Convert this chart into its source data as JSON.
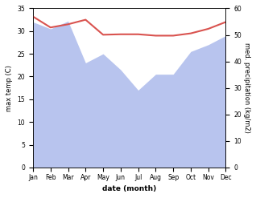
{
  "months": [
    "Jan",
    "Feb",
    "Mar",
    "Apr",
    "May",
    "Jun",
    "Jul",
    "Aug",
    "Sep",
    "Oct",
    "Nov",
    "Dec"
  ],
  "x": [
    0,
    1,
    2,
    3,
    4,
    5,
    6,
    7,
    8,
    9,
    10,
    11
  ],
  "temperature": [
    33.2,
    30.8,
    31.5,
    32.5,
    29.2,
    29.3,
    29.3,
    29.0,
    29.0,
    29.5,
    30.5,
    32.0
  ],
  "precipitation_temp_scale": [
    32.0,
    30.5,
    32.2,
    23.0,
    25.0,
    21.5,
    17.0,
    20.5,
    20.5,
    25.5,
    27.0,
    29.0
  ],
  "temp_color": "#d9534f",
  "precip_fill_color": "#b8c4ee",
  "temp_ylim": [
    0,
    35
  ],
  "precip_ylim": [
    0,
    60
  ],
  "temp_ylabel": "max temp (C)",
  "precip_ylabel": "med. precipitation (kg/m2)",
  "xlabel": "date (month)",
  "temp_yticks": [
    0,
    5,
    10,
    15,
    20,
    25,
    30,
    35
  ],
  "precip_yticks": [
    0,
    10,
    20,
    30,
    40,
    50,
    60
  ]
}
